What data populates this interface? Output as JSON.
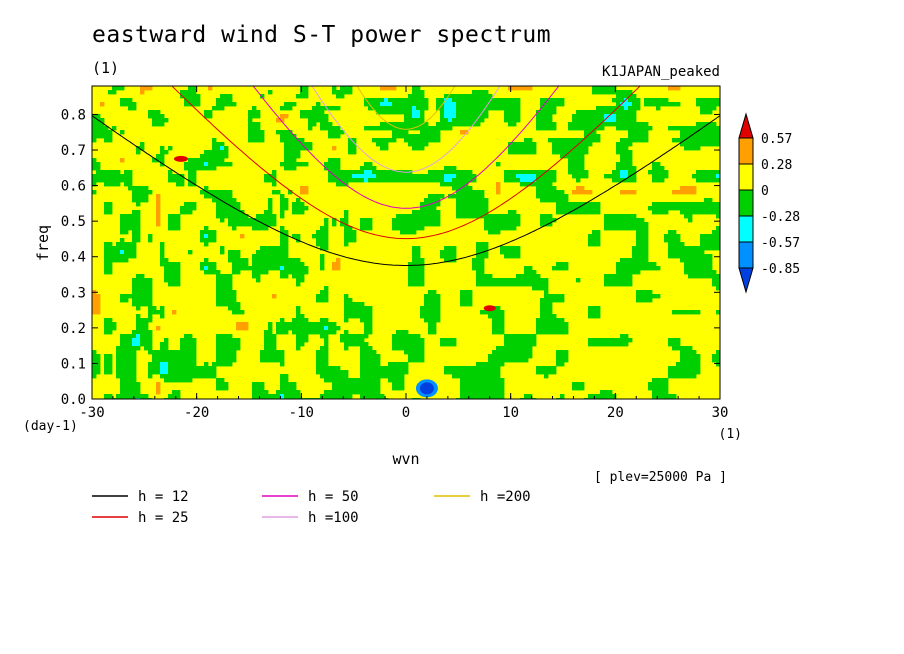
{
  "chart_data": {
    "type": "heatmap",
    "title": "eastward wind S-T power spectrum",
    "subtitle_left": "(1)",
    "subtitle_right": "K1JAPAN_peaked",
    "xlabel": "wvn",
    "ylabel": "freq",
    "x_unit": "(1)",
    "y_unit": "(day-1)",
    "xlim": [
      -30,
      30
    ],
    "ylim": [
      0,
      0.88
    ],
    "x_ticks": [
      "-30",
      "-20",
      "-10",
      "0",
      "10",
      "20",
      "30"
    ],
    "y_ticks": [
      "0.0",
      "0.1",
      "0.2",
      "0.3",
      "0.4",
      "0.5",
      "0.6",
      "0.7",
      "0.8"
    ],
    "annotation": "[ plev=25000 Pa ]",
    "colorbar": {
      "levels": [
        "0.57",
        "0.28",
        "0",
        "-0.28",
        "-0.57",
        "-0.85"
      ],
      "colors": [
        "#e00000",
        "#ff9f00",
        "#ffff00",
        "#00d000",
        "#00ffff",
        "#0090ff",
        "#0040e0"
      ]
    },
    "field_description": "noisy field mostly between -0.28 and 0.28 (yellow/green patches)",
    "series": [
      {
        "name": "h = 12",
        "color": "#000000",
        "equivalent_depth_m": 12
      },
      {
        "name": "h = 25",
        "color": "#e00000",
        "equivalent_depth_m": 25
      },
      {
        "name": "h = 50",
        "color": "#e000c0",
        "equivalent_depth_m": 50
      },
      {
        "name": "h =100",
        "color": "#e0a0e0",
        "equivalent_depth_m": 100
      },
      {
        "name": "h =200",
        "color": "#e0c000",
        "equivalent_depth_m": 200
      }
    ]
  }
}
